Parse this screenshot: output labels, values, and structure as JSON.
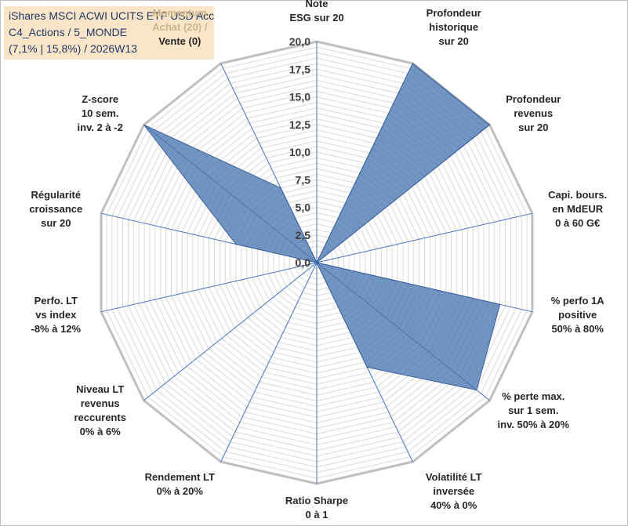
{
  "title_box": {
    "line1": "iShares MSCI ACWI UCITS ETF USD Acc",
    "line2": "C4_Actions / 5_MONDE",
    "line3": "(7,1% | 15,8%) / 2026W13"
  },
  "chart_data": {
    "type": "radar",
    "title": "",
    "rlim": [
      0,
      20
    ],
    "r_ticks": [
      "0,0",
      "2,5",
      "5,0",
      "7,5",
      "10,0",
      "12,5",
      "15,0",
      "17,5",
      "20,0"
    ],
    "grid": true,
    "series_color": "#4a76b0",
    "categories": [
      [
        "Note",
        "ESG sur 20"
      ],
      [
        "Profondeur",
        "historique",
        "sur 20"
      ],
      [
        "Profondeur",
        "revenus",
        "sur 20"
      ],
      [
        "Capi. bours.",
        "en MdEUR",
        "0 à 60 G€"
      ],
      [
        "% perfo 1A",
        "positive",
        "50% à 80%"
      ],
      [
        "% perte max.",
        "sur 1 sem.",
        "inv. 50% à 20%"
      ],
      [
        "Volatilité LT",
        "inversée",
        "40% à 0%"
      ],
      [
        "Ratio Sharpe",
        "0 à 1"
      ],
      [
        "Rendement LT",
        "0% à 20%"
      ],
      [
        "Niveau LT",
        "revenus",
        "reccurents",
        "0% à 6%"
      ],
      [
        "Perfo. LT",
        "vs index",
        "-8% à 12%"
      ],
      [
        "Régularité",
        "croissance",
        "sur 20"
      ],
      [
        "Z-score",
        "10 sem.",
        "inv. 2 à -2"
      ],
      [
        "Momentum",
        "Achat (20) /",
        "Vente (0)"
      ]
    ],
    "values": [
      0,
      20,
      20,
      0,
      17,
      18.5,
      10.5,
      0,
      0,
      0,
      0,
      7.5,
      20,
      7.5
    ]
  }
}
